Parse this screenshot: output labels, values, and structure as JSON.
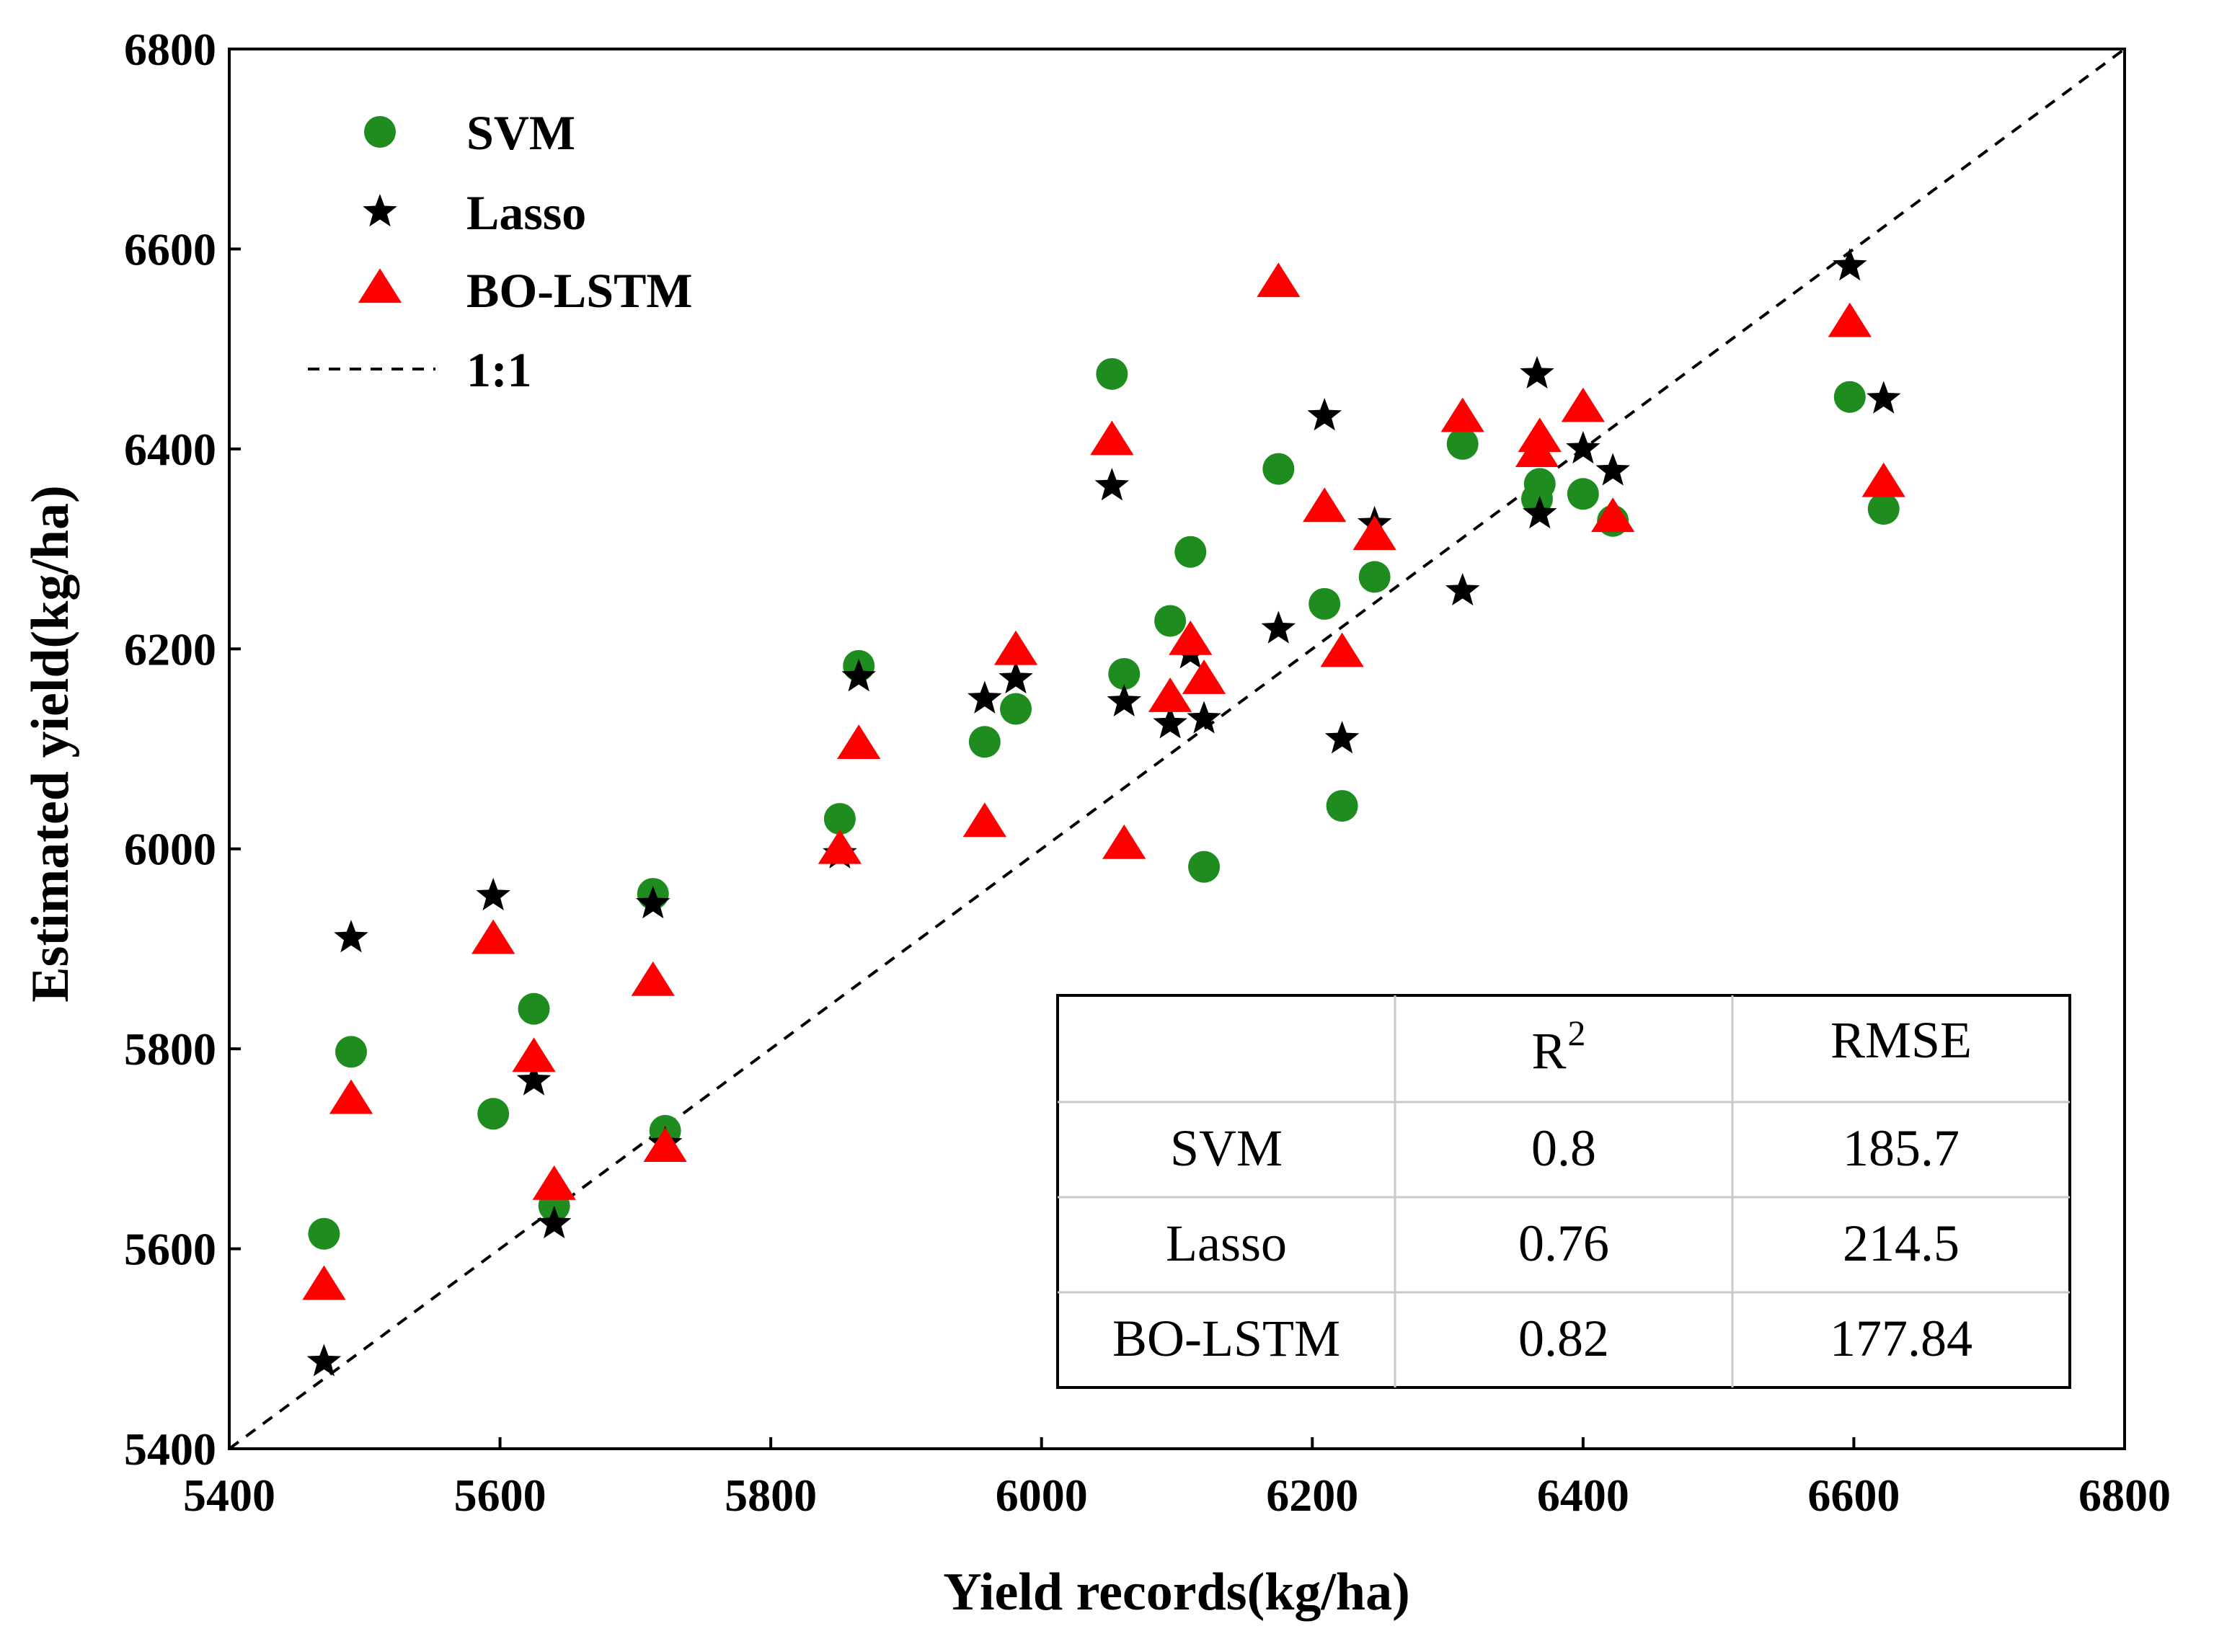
{
  "chart_data": {
    "type": "scatter",
    "title": "",
    "xlabel": "Yield records(kg/ha)",
    "ylabel": "Estimated yield(kg/ha)",
    "xlim": [
      5400,
      6800
    ],
    "ylim": [
      5400,
      6800
    ],
    "xticks": [
      5400,
      5600,
      5800,
      6000,
      6200,
      6400,
      6600,
      6800
    ],
    "yticks": [
      5400,
      5600,
      5800,
      6000,
      6200,
      6400,
      6600,
      6800
    ],
    "legend_position": "top-left",
    "colors": {
      "svm": "#1f8c1f",
      "lasso": "#000000",
      "bolstm": "#ff0000",
      "reference": "#000000"
    },
    "x": [
      5470,
      5490,
      5595,
      5625,
      5640,
      5713,
      5722,
      5851,
      5865,
      5958,
      5981,
      6052,
      6061,
      6095,
      6110,
      6120,
      6175,
      6209,
      6222,
      6246,
      6311,
      6366,
      6368,
      6400,
      6422,
      6597,
      6622
    ],
    "series": [
      {
        "name": "SVM",
        "marker": "circle",
        "values": [
          5615,
          5797,
          5735,
          5840,
          5643,
          5955,
          5718,
          6030,
          6183,
          6107,
          6140,
          6475,
          6175,
          6228,
          6297,
          5982,
          6380,
          6245,
          6043,
          6272,
          6405,
          6350,
          6365,
          6355,
          6328,
          6452,
          6340
        ]
      },
      {
        "name": "Lasso",
        "marker": "star",
        "values": [
          5487,
          5911,
          5953,
          5768,
          5625,
          5945,
          5705,
          5995,
          6172,
          6150,
          6170,
          6363,
          6147,
          6125,
          6195,
          6130,
          6220,
          6433,
          6110,
          6325,
          6258,
          6475,
          6335,
          6400,
          6378,
          6583,
          6450
        ]
      },
      {
        "name": "BO-LSTM",
        "marker": "triangle",
        "values": [
          5562,
          5748,
          5908,
          5790,
          5662,
          5866,
          5700,
          5998,
          6103,
          6025,
          6197,
          6407,
          6003,
          6150,
          6207,
          6168,
          6565,
          6340,
          6195,
          6312,
          6430,
          6395,
          6410,
          6440,
          6330,
          6525,
          6365
        ]
      }
    ],
    "reference_line": {
      "name": "1:1",
      "style": "dashed",
      "from": [
        5400,
        5400
      ],
      "to": [
        6800,
        6800
      ]
    },
    "table": {
      "headers": [
        "",
        "R",
        "2",
        "RMSE"
      ],
      "rows": [
        [
          "SVM",
          "0.8",
          "185.7"
        ],
        [
          "Lasso",
          "0.76",
          "214.5"
        ],
        [
          "BO-LSTM",
          "0.82",
          "177.84"
        ]
      ]
    }
  }
}
